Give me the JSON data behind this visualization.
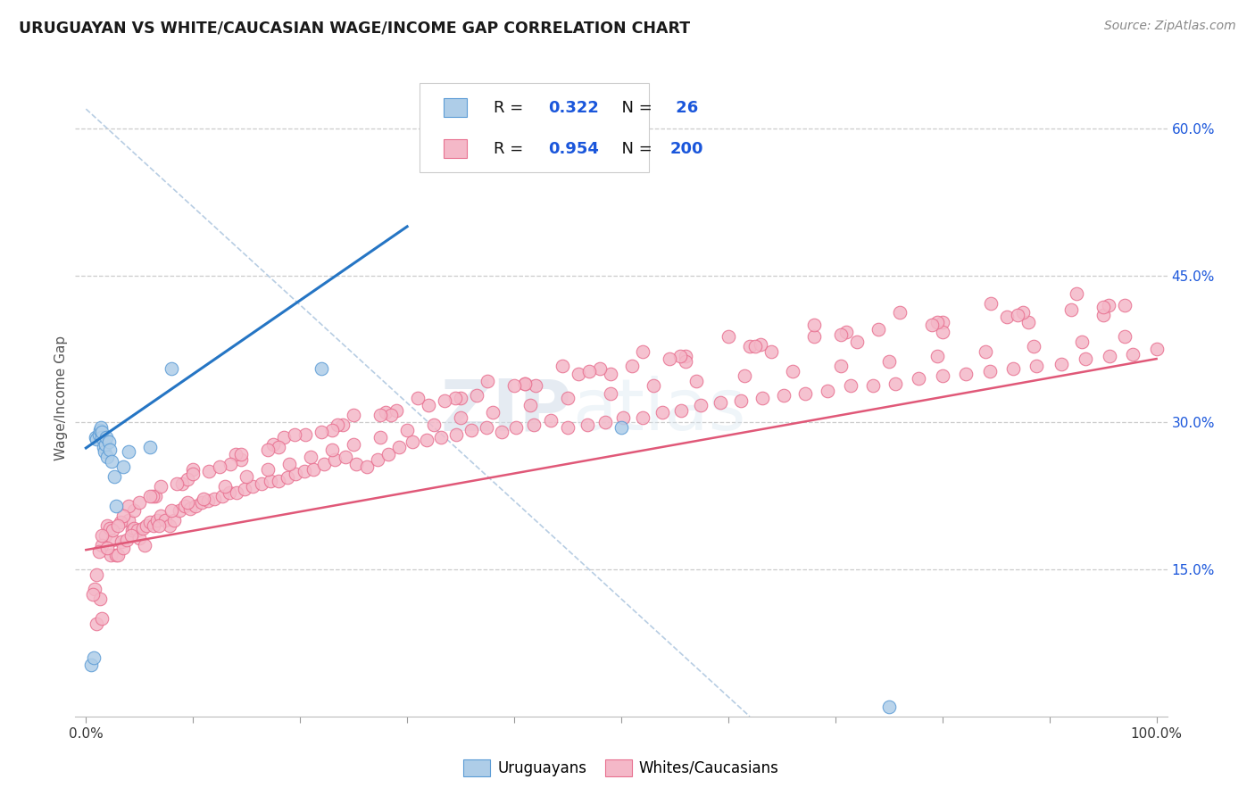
{
  "title": "URUGUAYAN VS WHITE/CAUCASIAN WAGE/INCOME GAP CORRELATION CHART",
  "source": "Source: ZipAtlas.com",
  "ylabel": "Wage/Income Gap",
  "xlim": [
    -0.01,
    1.01
  ],
  "ylim": [
    0.0,
    0.65
  ],
  "ytick_right": [
    0.15,
    0.3,
    0.45,
    0.6
  ],
  "ytick_right_labels": [
    "15.0%",
    "30.0%",
    "45.0%",
    "60.0%"
  ],
  "blue_R": 0.322,
  "blue_N": 26,
  "pink_R": 0.954,
  "pink_N": 200,
  "blue_fill_color": "#aecde8",
  "pink_fill_color": "#f4b8c8",
  "blue_edge_color": "#5b9bd5",
  "pink_edge_color": "#e87090",
  "blue_line_color": "#2575c4",
  "pink_line_color": "#e05878",
  "legend_R_color": "#1a56db",
  "legend_N_color": "#1a56db",
  "blue_line": [
    0.0,
    0.274,
    0.3,
    0.5
  ],
  "pink_line": [
    0.0,
    0.17,
    1.0,
    0.365
  ],
  "diag_line": [
    0.0,
    0.62,
    0.62,
    0.0
  ],
  "blue_x": [
    0.005,
    0.007,
    0.009,
    0.01,
    0.012,
    0.013,
    0.014,
    0.015,
    0.015,
    0.016,
    0.017,
    0.018,
    0.019,
    0.02,
    0.021,
    0.022,
    0.024,
    0.026,
    0.028,
    0.035,
    0.04,
    0.06,
    0.08,
    0.22,
    0.5,
    0.75
  ],
  "blue_y": [
    0.053,
    0.06,
    0.285,
    0.283,
    0.288,
    0.292,
    0.295,
    0.285,
    0.29,
    0.275,
    0.27,
    0.278,
    0.285,
    0.265,
    0.28,
    0.272,
    0.26,
    0.245,
    0.215,
    0.255,
    0.27,
    0.275,
    0.355,
    0.355,
    0.295,
    0.01
  ],
  "pink_x": [
    0.008,
    0.01,
    0.013,
    0.015,
    0.018,
    0.02,
    0.023,
    0.025,
    0.028,
    0.03,
    0.033,
    0.035,
    0.038,
    0.04,
    0.043,
    0.045,
    0.048,
    0.05,
    0.053,
    0.056,
    0.06,
    0.063,
    0.066,
    0.07,
    0.074,
    0.078,
    0.082,
    0.087,
    0.092,
    0.097,
    0.102,
    0.108,
    0.114,
    0.12,
    0.127,
    0.134,
    0.141,
    0.148,
    0.156,
    0.164,
    0.172,
    0.18,
    0.188,
    0.196,
    0.204,
    0.212,
    0.222,
    0.232,
    0.242,
    0.252,
    0.262,
    0.272,
    0.282,
    0.292,
    0.305,
    0.318,
    0.332,
    0.346,
    0.36,
    0.374,
    0.388,
    0.402,
    0.418,
    0.434,
    0.45,
    0.468,
    0.485,
    0.502,
    0.52,
    0.538,
    0.556,
    0.574,
    0.593,
    0.612,
    0.632,
    0.652,
    0.672,
    0.693,
    0.714,
    0.735,
    0.756,
    0.778,
    0.8,
    0.822,
    0.844,
    0.866,
    0.888,
    0.911,
    0.934,
    0.956,
    0.978,
    1.0,
    0.006,
    0.015,
    0.022,
    0.032,
    0.042,
    0.055,
    0.068,
    0.08,
    0.095,
    0.11,
    0.13,
    0.15,
    0.17,
    0.19,
    0.21,
    0.23,
    0.25,
    0.275,
    0.3,
    0.325,
    0.35,
    0.38,
    0.415,
    0.45,
    0.49,
    0.53,
    0.57,
    0.615,
    0.66,
    0.705,
    0.75,
    0.795,
    0.84,
    0.885,
    0.93,
    0.97,
    0.01,
    0.025,
    0.045,
    0.065,
    0.09,
    0.115,
    0.145,
    0.175,
    0.205,
    0.24,
    0.28,
    0.32,
    0.365,
    0.41,
    0.46,
    0.51,
    0.56,
    0.62,
    0.68,
    0.74,
    0.8,
    0.86,
    0.92,
    0.97,
    0.015,
    0.04,
    0.07,
    0.1,
    0.14,
    0.185,
    0.235,
    0.29,
    0.35,
    0.42,
    0.49,
    0.56,
    0.64,
    0.72,
    0.8,
    0.88,
    0.95,
    0.012,
    0.035,
    0.062,
    0.095,
    0.135,
    0.18,
    0.23,
    0.285,
    0.345,
    0.41,
    0.48,
    0.555,
    0.63,
    0.71,
    0.795,
    0.875,
    0.955,
    0.02,
    0.05,
    0.085,
    0.125,
    0.17,
    0.22,
    0.275,
    0.335,
    0.4,
    0.47,
    0.545,
    0.625,
    0.705,
    0.79,
    0.87,
    0.95,
    0.03,
    0.06,
    0.1,
    0.145,
    0.195,
    0.25,
    0.31,
    0.375,
    0.445,
    0.52,
    0.6,
    0.68,
    0.76,
    0.845,
    0.925
  ],
  "pink_y": [
    0.13,
    0.095,
    0.12,
    0.1,
    0.185,
    0.195,
    0.165,
    0.18,
    0.165,
    0.165,
    0.178,
    0.172,
    0.18,
    0.2,
    0.19,
    0.192,
    0.19,
    0.182,
    0.192,
    0.195,
    0.198,
    0.195,
    0.2,
    0.205,
    0.2,
    0.195,
    0.2,
    0.21,
    0.215,
    0.212,
    0.215,
    0.218,
    0.22,
    0.222,
    0.225,
    0.228,
    0.228,
    0.232,
    0.235,
    0.238,
    0.24,
    0.24,
    0.244,
    0.248,
    0.25,
    0.252,
    0.258,
    0.262,
    0.265,
    0.258,
    0.255,
    0.262,
    0.268,
    0.275,
    0.28,
    0.282,
    0.285,
    0.288,
    0.292,
    0.295,
    0.29,
    0.295,
    0.298,
    0.302,
    0.295,
    0.298,
    0.3,
    0.305,
    0.305,
    0.31,
    0.312,
    0.318,
    0.32,
    0.322,
    0.325,
    0.328,
    0.33,
    0.332,
    0.338,
    0.338,
    0.34,
    0.345,
    0.348,
    0.35,
    0.352,
    0.355,
    0.358,
    0.36,
    0.365,
    0.368,
    0.37,
    0.375,
    0.125,
    0.175,
    0.192,
    0.198,
    0.185,
    0.175,
    0.195,
    0.21,
    0.218,
    0.222,
    0.235,
    0.245,
    0.252,
    0.258,
    0.265,
    0.272,
    0.278,
    0.285,
    0.292,
    0.298,
    0.305,
    0.31,
    0.318,
    0.325,
    0.33,
    0.338,
    0.342,
    0.348,
    0.352,
    0.358,
    0.362,
    0.368,
    0.372,
    0.378,
    0.382,
    0.388,
    0.145,
    0.19,
    0.21,
    0.225,
    0.238,
    0.25,
    0.262,
    0.278,
    0.288,
    0.298,
    0.31,
    0.318,
    0.328,
    0.34,
    0.35,
    0.358,
    0.368,
    0.378,
    0.388,
    0.395,
    0.402,
    0.408,
    0.415,
    0.42,
    0.185,
    0.215,
    0.235,
    0.252,
    0.268,
    0.285,
    0.298,
    0.312,
    0.325,
    0.338,
    0.35,
    0.362,
    0.372,
    0.382,
    0.392,
    0.402,
    0.41,
    0.168,
    0.205,
    0.225,
    0.242,
    0.258,
    0.275,
    0.292,
    0.308,
    0.325,
    0.34,
    0.355,
    0.368,
    0.38,
    0.392,
    0.402,
    0.412,
    0.42,
    0.172,
    0.218,
    0.238,
    0.255,
    0.272,
    0.29,
    0.308,
    0.322,
    0.338,
    0.352,
    0.365,
    0.378,
    0.39,
    0.4,
    0.41,
    0.418,
    0.195,
    0.225,
    0.248,
    0.268,
    0.288,
    0.308,
    0.325,
    0.342,
    0.358,
    0.372,
    0.388,
    0.4,
    0.412,
    0.422,
    0.432
  ]
}
